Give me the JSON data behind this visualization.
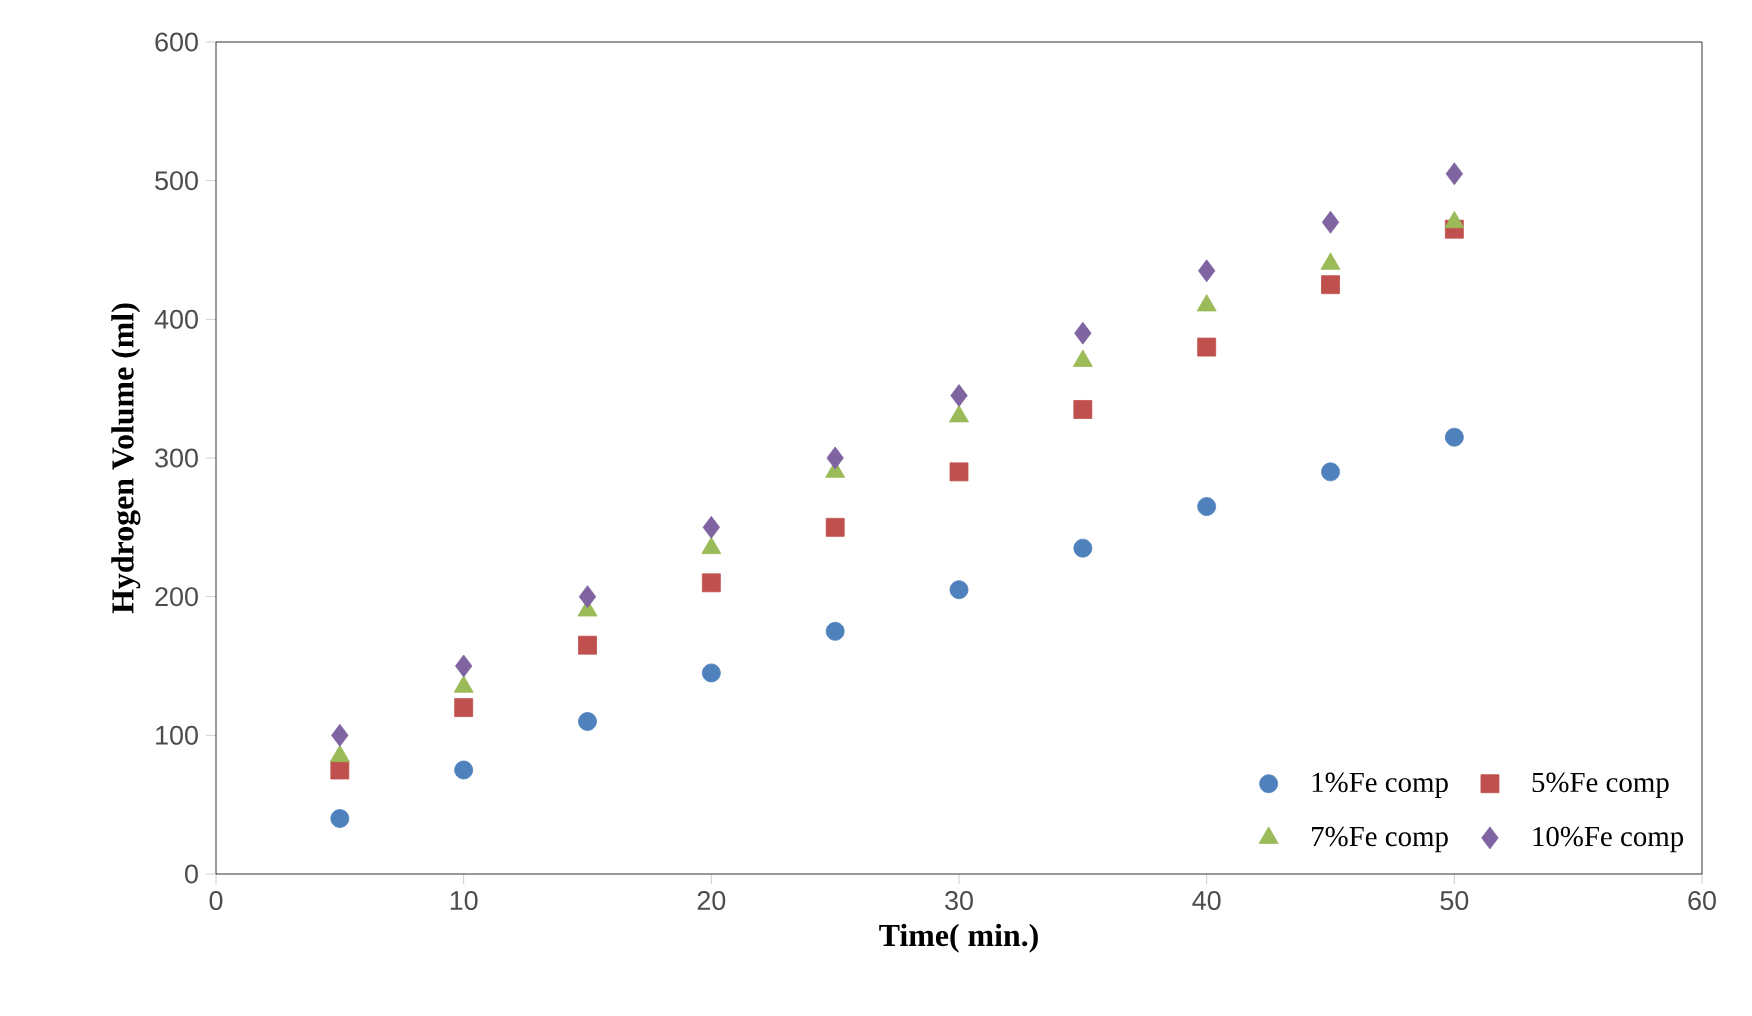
{
  "chart_data": {
    "type": "scatter",
    "xlabel": "Time( min.)",
    "ylabel": "Hydrogen Volume (ml)",
    "x": [
      5,
      10,
      15,
      20,
      25,
      30,
      35,
      40,
      45,
      50
    ],
    "series": [
      {
        "name": "1%Fe comp",
        "color": "#4f81bd",
        "marker": "circle",
        "values": [
          40,
          75,
          110,
          145,
          175,
          205,
          235,
          265,
          290,
          315
        ]
      },
      {
        "name": "5%Fe comp",
        "color": "#c0504d",
        "marker": "square",
        "values": [
          75,
          120,
          165,
          210,
          250,
          290,
          335,
          380,
          425,
          465
        ]
      },
      {
        "name": "7%Fe comp",
        "color": "#9bbb59",
        "marker": "triangle",
        "values": [
          85,
          135,
          190,
          235,
          290,
          330,
          370,
          410,
          440,
          470
        ]
      },
      {
        "name": "10%Fe comp",
        "color": "#8064a2",
        "marker": "diamond",
        "values": [
          100,
          150,
          200,
          250,
          300,
          345,
          390,
          435,
          470,
          505
        ]
      }
    ],
    "xlim": [
      0,
      60
    ],
    "ylim": [
      0,
      600
    ],
    "xticks": [
      0,
      10,
      20,
      30,
      40,
      50,
      60
    ],
    "yticks": [
      0,
      100,
      200,
      300,
      400,
      500,
      600
    ],
    "grid": false,
    "legend": "bottom right"
  }
}
